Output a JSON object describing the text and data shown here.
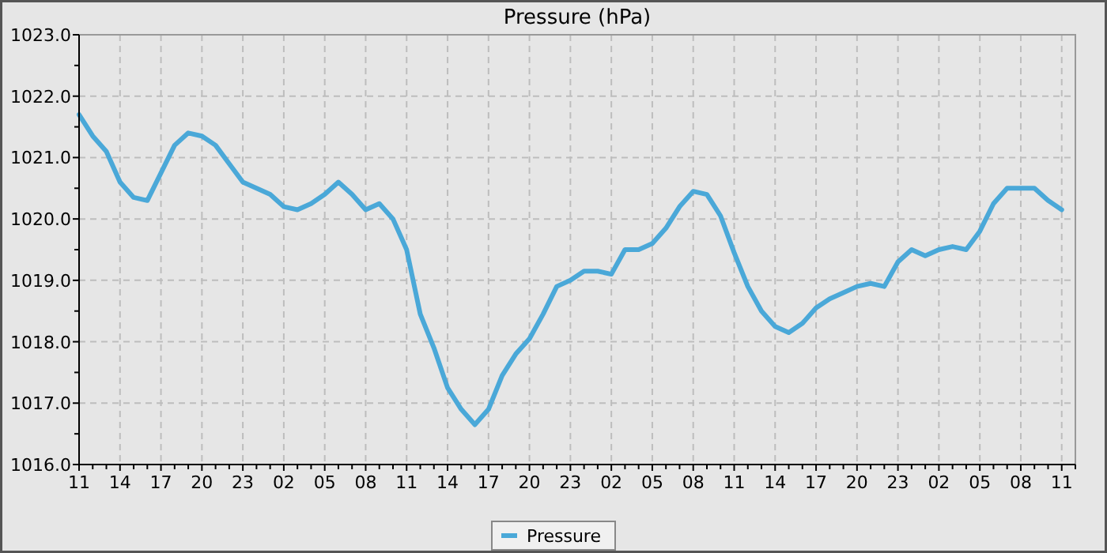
{
  "chart_data": {
    "type": "line",
    "title": "Pressure (hPa)",
    "legend": "bottom",
    "grid": true,
    "line_style": "solid",
    "marker": "none",
    "categories": [
      "11",
      null,
      null,
      "14",
      null,
      null,
      "17",
      null,
      null,
      "20",
      null,
      null,
      "23",
      null,
      null,
      "02",
      null,
      null,
      "05",
      null,
      null,
      "08",
      null,
      null,
      "11",
      null,
      null,
      "14",
      null,
      null,
      "17",
      null,
      null,
      "20",
      null,
      null,
      "23",
      null,
      null,
      "02",
      null,
      null,
      "05",
      null,
      null,
      "08",
      null,
      null,
      "11",
      null,
      null,
      "14",
      null,
      null,
      "17",
      null,
      null,
      "20",
      null,
      null,
      "23",
      null,
      null,
      "02",
      null,
      null,
      "05",
      null,
      null,
      "08",
      null,
      null,
      "11",
      null
    ],
    "ylim": [
      1016,
      1023
    ],
    "yticks": [
      {
        "value": 1016,
        "label": "1016.0"
      },
      {
        "value": 1016.5,
        "label": null
      },
      {
        "value": 1017,
        "label": "1017.0"
      },
      {
        "value": 1017.5,
        "label": null
      },
      {
        "value": 1018,
        "label": "1018.0"
      },
      {
        "value": 1018.5,
        "label": null
      },
      {
        "value": 1019,
        "label": "1019.0"
      },
      {
        "value": 1019.5,
        "label": null
      },
      {
        "value": 1020,
        "label": "1020.0"
      },
      {
        "value": 1020.5,
        "label": null
      },
      {
        "value": 1021,
        "label": "1021.0"
      },
      {
        "value": 1021.5,
        "label": null
      },
      {
        "value": 1022,
        "label": "1022.0"
      },
      {
        "value": 1022.5,
        "label": null
      },
      {
        "value": 1023,
        "label": "1023.0"
      }
    ],
    "series": [
      {
        "name": "Pressure",
        "color": "#4aa8d8",
        "values": [
          1021.7,
          1021.35,
          1021.1,
          1020.6,
          1020.35,
          1020.3,
          1020.75,
          1021.2,
          1021.4,
          1021.35,
          1021.2,
          1020.9,
          1020.6,
          1020.5,
          1020.4,
          1020.2,
          1020.15,
          1020.25,
          1020.4,
          1020.6,
          1020.4,
          1020.15,
          1020.25,
          1020.0,
          1019.5,
          1018.45,
          1017.9,
          1017.25,
          1016.9,
          1016.65,
          1016.9,
          1017.45,
          1017.8,
          1018.05,
          1018.45,
          1018.9,
          1019.0,
          1019.15,
          1019.15,
          1019.1,
          1019.5,
          1019.5,
          1019.6,
          1019.85,
          1020.2,
          1020.45,
          1020.4,
          1020.05,
          1019.45,
          1018.9,
          1018.5,
          1018.25,
          1018.15,
          1018.3,
          1018.55,
          1018.7,
          1018.8,
          1018.9,
          1018.95,
          1018.9,
          1019.3,
          1019.5,
          1019.4,
          1019.5,
          1019.55,
          1019.5,
          1019.8,
          1020.25,
          1020.5,
          1020.5,
          1020.5,
          1020.3,
          1020.15,
          null
        ]
      }
    ]
  }
}
